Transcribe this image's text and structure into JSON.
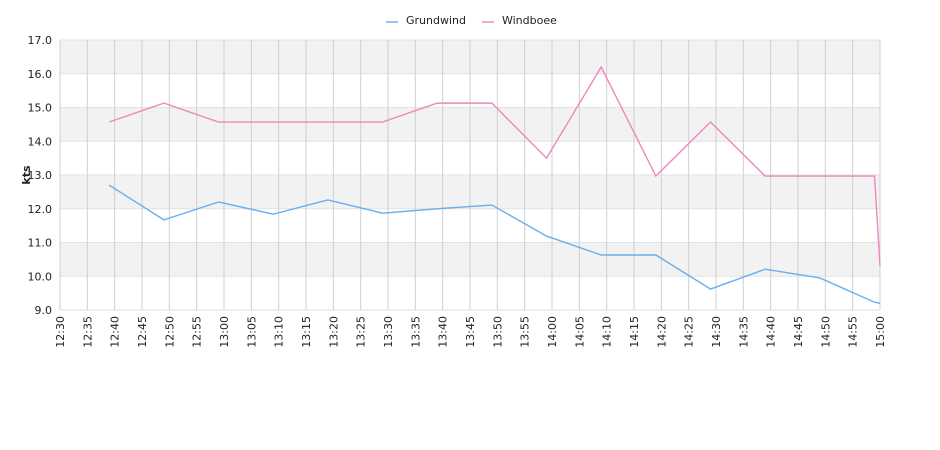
{
  "chart_data": {
    "type": "line",
    "y_label": "kts",
    "x": [
      "12:39",
      "12:49",
      "12:59",
      "13:09",
      "13:19",
      "13:29",
      "13:39",
      "13:49",
      "13:59",
      "14:09",
      "14:19",
      "14:29",
      "14:39",
      "14:49",
      "14:59",
      "15:00"
    ],
    "series": [
      {
        "name": "Grundwind",
        "color": "#6aaeec",
        "values": [
          12.7,
          11.67,
          12.2,
          11.84,
          12.26,
          11.87,
          12.0,
          12.11,
          11.19,
          10.63,
          10.63,
          9.62,
          10.21,
          9.95,
          9.23,
          9.2
        ]
      },
      {
        "name": "Windboee",
        "color": "#ee88bf",
        "values": [
          14.57,
          15.13,
          14.57,
          14.57,
          14.57,
          14.57,
          15.13,
          15.13,
          13.5,
          16.2,
          12.97,
          14.57,
          12.97,
          12.97,
          12.97,
          10.3
        ]
      }
    ],
    "xlim": [
      "12:30",
      "15:00"
    ],
    "xticks": [
      "12:30",
      "12:35",
      "12:40",
      "12:45",
      "12:50",
      "12:55",
      "13:00",
      "13:05",
      "13:10",
      "13:15",
      "13:20",
      "13:25",
      "13:30",
      "13:35",
      "13:40",
      "13:45",
      "13:50",
      "13:55",
      "14:00",
      "14:05",
      "14:10",
      "14:15",
      "14:20",
      "14:25",
      "14:30",
      "14:35",
      "14:40",
      "14:45",
      "14:50",
      "14:55",
      "15:00"
    ],
    "ylim": [
      9,
      17
    ],
    "yticks": [
      {
        "value": 9,
        "label": "9.0"
      },
      {
        "value": 10,
        "label": "10.0"
      },
      {
        "value": 11,
        "label": "11.0"
      },
      {
        "value": 12,
        "label": "12.0"
      },
      {
        "value": 13,
        "label": "13.0"
      },
      {
        "value": 14,
        "label": "14.0"
      },
      {
        "value": 15,
        "label": "15.0"
      },
      {
        "value": 16,
        "label": "16.0"
      },
      {
        "value": 17,
        "label": "17.0"
      }
    ],
    "grid": true,
    "legend": "top"
  }
}
